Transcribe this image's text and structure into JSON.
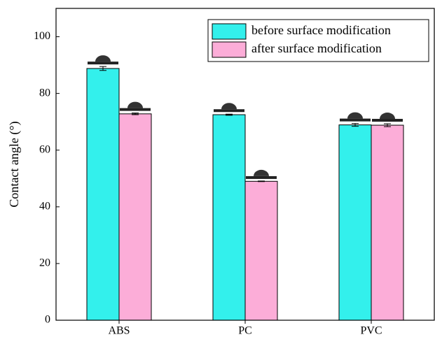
{
  "chart_data": {
    "type": "bar",
    "y_label": "Contact angle (°)",
    "categories": [
      "ABS",
      "PC",
      "PVC"
    ],
    "series": [
      {
        "name": "before surface modification",
        "color": "#33f0ec",
        "values": [
          88.8,
          72.5,
          68.9
        ],
        "errors": [
          0.7,
          0.2,
          0.5
        ]
      },
      {
        "name": "after surface modification",
        "color": "#fcadd8",
        "values": [
          72.8,
          49,
          68.8
        ],
        "errors": [
          0.3,
          0.1,
          0.5
        ]
      }
    ],
    "ylim": [
      0,
      110
    ],
    "yticks": [
      0,
      20,
      40,
      60,
      80,
      100
    ],
    "grid": false,
    "legend": "top-right"
  }
}
